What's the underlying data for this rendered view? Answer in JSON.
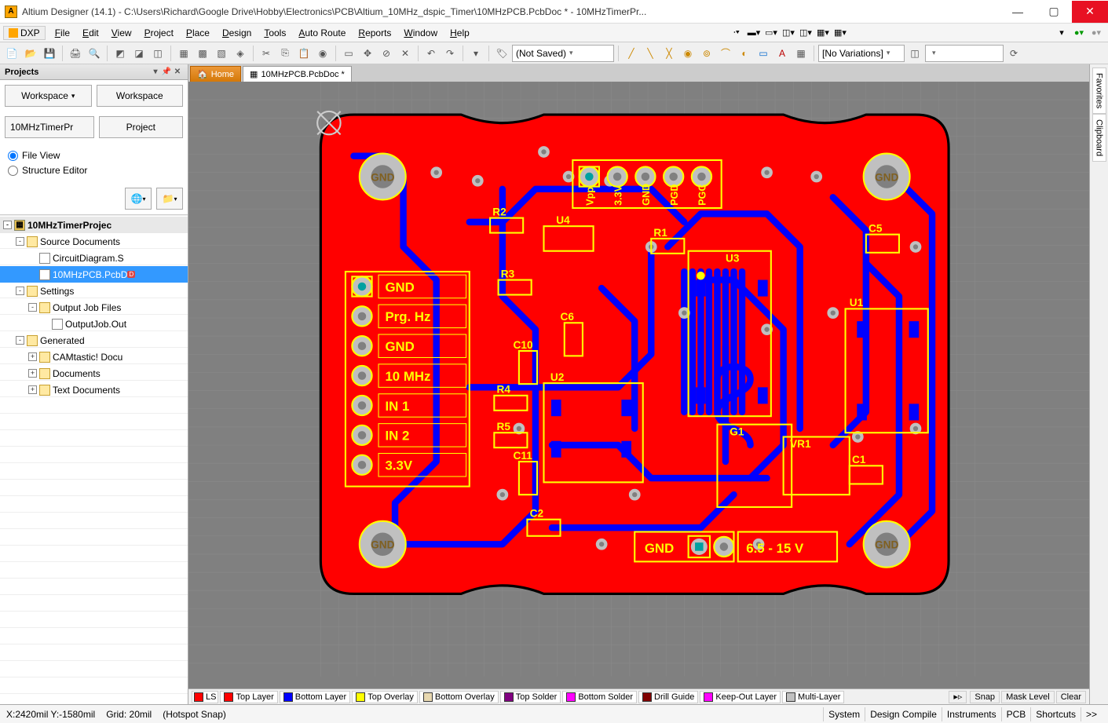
{
  "titlebar": {
    "app_icon_text": "A",
    "title": "Altium Designer (14.1) - C:\\Users\\Richard\\Google Drive\\Hobby\\Electronics\\PCB\\Altium_10MHz_dspic_Timer\\10MHzPCB.PcbDoc * - 10MHzTimerPr..."
  },
  "menu": {
    "dxp": "DXP",
    "items": [
      "File",
      "Edit",
      "View",
      "Project",
      "Place",
      "Design",
      "Tools",
      "Auto Route",
      "Reports",
      "Window",
      "Help"
    ]
  },
  "toolbar_combo1": "(Not Saved)",
  "toolbar_combo2": "[No Variations]",
  "projects_panel": {
    "title": "Projects",
    "workspace_btn": "Workspace",
    "workspace_btn2": "Workspace",
    "proj_label": "10MHzTimerPr",
    "project_btn": "Project",
    "radio_file": "File View",
    "radio_struct": "Structure Editor",
    "tree": [
      {
        "lvl": 0,
        "exp": "-",
        "icon": "proj",
        "label": "10MHzTimerProjec",
        "proj": true
      },
      {
        "lvl": 1,
        "exp": "-",
        "icon": "folder",
        "label": "Source Documents"
      },
      {
        "lvl": 2,
        "exp": "",
        "icon": "doc",
        "label": "CircuitDiagram.S"
      },
      {
        "lvl": 2,
        "exp": "",
        "icon": "doc",
        "label": "10MHzPCB.PcbD",
        "sel": true,
        "mod": true
      },
      {
        "lvl": 1,
        "exp": "-",
        "icon": "folder",
        "label": "Settings"
      },
      {
        "lvl": 2,
        "exp": "-",
        "icon": "folder",
        "label": "Output Job Files"
      },
      {
        "lvl": 3,
        "exp": "",
        "icon": "doc",
        "label": "OutputJob.Out"
      },
      {
        "lvl": 1,
        "exp": "-",
        "icon": "folder",
        "label": "Generated"
      },
      {
        "lvl": 2,
        "exp": "+",
        "icon": "folder",
        "label": "CAMtastic! Docu"
      },
      {
        "lvl": 2,
        "exp": "+",
        "icon": "folder",
        "label": "Documents"
      },
      {
        "lvl": 2,
        "exp": "+",
        "icon": "folder",
        "label": "Text Documents"
      }
    ]
  },
  "tabs": {
    "home": "Home",
    "doc": "10MHzPCB.PcbDoc *"
  },
  "right_tabs": [
    "Favorites",
    "Clipboard"
  ],
  "layer_tabs": [
    {
      "color": "#FF0000",
      "label": "LS",
      "big": true
    },
    {
      "color": "#FF0000",
      "label": "Top Layer"
    },
    {
      "color": "#0000FF",
      "label": "Bottom Layer"
    },
    {
      "color": "#FFFF00",
      "label": "Top Overlay"
    },
    {
      "color": "#E8D8B0",
      "label": "Bottom Overlay"
    },
    {
      "color": "#800080",
      "label": "Top Solder"
    },
    {
      "color": "#FF00FF",
      "label": "Bottom Solder"
    },
    {
      "color": "#800000",
      "label": "Drill Guide"
    },
    {
      "color": "#FF00FF",
      "label": "Keep-Out Layer"
    },
    {
      "color": "#C0C0C0",
      "label": "Multi-Layer"
    }
  ],
  "layer_right_btns": [
    "Snap",
    "Mask Level",
    "Clear"
  ],
  "status": {
    "coords": "X:2420mil Y:-1580mil",
    "grid": "Grid: 20mil",
    "hotspot": "(Hotspot Snap)",
    "buttons": [
      "System",
      "Design Compile",
      "Instruments",
      "PCB",
      "Shortcuts",
      ">>"
    ]
  },
  "pcb": {
    "colors": {
      "bg": "#808080",
      "board": "#FF0000",
      "bottom": "#0000FF",
      "overlay": "#FFFF00",
      "keepout": "#FF00FF",
      "outline": "#000000",
      "via": "#C0C0C0",
      "hole": "#808080",
      "pad": "#00A0A0",
      "gnd_text": "#806020"
    },
    "text": {
      "GND": "GND",
      "mount_gnd": "GND",
      "header_labels": [
        "GND",
        "Prg. Hz",
        "GND",
        "10 MHz",
        "IN 1",
        "IN 2",
        "3.3V"
      ],
      "prog_labels": [
        "Vpp",
        "3.3V",
        "GND",
        "PGD",
        "PGC"
      ],
      "bottom_gnd": "GND",
      "bottom_volt": "6.5 - 15 V",
      "refs": {
        "R1": "R1",
        "R2": "R2",
        "R3": "R3",
        "R4": "R4",
        "R5": "R5",
        "C1": "C1",
        "C2": "C2",
        "C5": "C5",
        "C6": "C6",
        "C10": "C10",
        "C11": "C11",
        "U1": "U1",
        "U2": "U2",
        "U3": "U3",
        "U4": "U4",
        "G1": "G1",
        "VR1": "VR1"
      }
    }
  }
}
